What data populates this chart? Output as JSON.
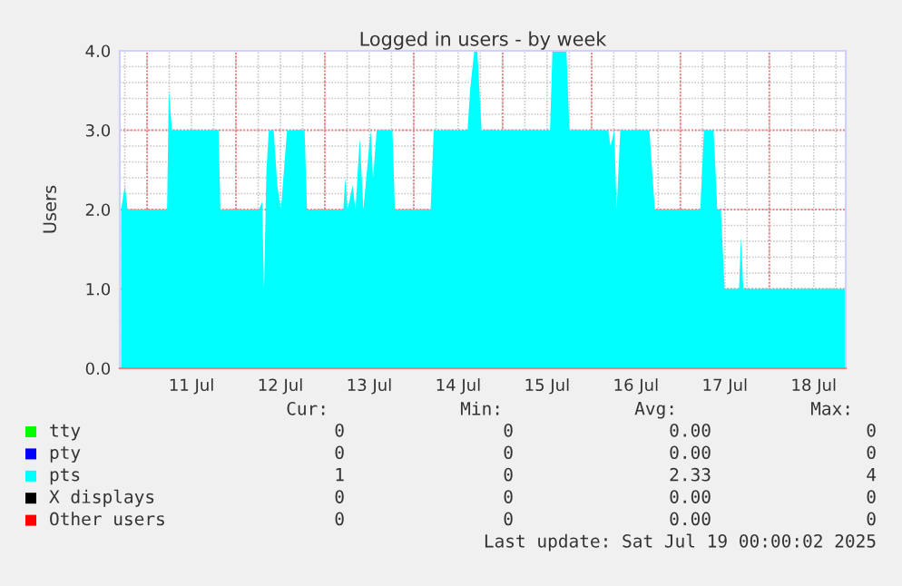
{
  "chart_data": {
    "type": "area",
    "title": "Logged in users - by week",
    "ylabel": "Users",
    "xlim": [
      "2025-07-10T16:38",
      "2025-07-18T20:38"
    ],
    "ylim": [
      0,
      4
    ],
    "yticks": [
      {
        "value": 0,
        "label": "0.0"
      },
      {
        "value": 1,
        "label": "1.0"
      },
      {
        "value": 2,
        "label": "2.0"
      },
      {
        "value": 3,
        "label": "3.0"
      },
      {
        "value": 4,
        "label": "4.0"
      }
    ],
    "xticks": [
      {
        "value": "2025-07-11T00:00",
        "label": null
      },
      {
        "value": "2025-07-11T12:00",
        "label": "11 Jul"
      },
      {
        "value": "2025-07-12T00:00",
        "label": null
      },
      {
        "value": "2025-07-12T12:00",
        "label": "12 Jul"
      },
      {
        "value": "2025-07-13T00:00",
        "label": null
      },
      {
        "value": "2025-07-13T12:00",
        "label": "13 Jul"
      },
      {
        "value": "2025-07-14T00:00",
        "label": null
      },
      {
        "value": "2025-07-14T12:00",
        "label": "14 Jul"
      },
      {
        "value": "2025-07-15T00:00",
        "label": null
      },
      {
        "value": "2025-07-15T12:00",
        "label": "15 Jul"
      },
      {
        "value": "2025-07-16T00:00",
        "label": null
      },
      {
        "value": "2025-07-16T12:00",
        "label": "16 Jul"
      },
      {
        "value": "2025-07-17T00:00",
        "label": null
      },
      {
        "value": "2025-07-17T12:00",
        "label": "17 Jul"
      },
      {
        "value": "2025-07-18T00:00",
        "label": null
      },
      {
        "value": "2025-07-18T12:00",
        "label": "18 Jul"
      }
    ],
    "grid": true,
    "legend": "bottom",
    "series": [
      {
        "name": "tty",
        "color": "#00ff00"
      },
      {
        "name": "pty",
        "color": "#0000ff"
      },
      {
        "name": "pts",
        "color": "#00ffff",
        "x": [
          "2025-07-10T17:00",
          "2025-07-10T18:00",
          "2025-07-10T18:45",
          "2025-07-11T05:24",
          "2025-07-11T05:53",
          "2025-07-11T06:43",
          "2025-07-11T19:18",
          "2025-07-11T19:48",
          "2025-07-12T06:16",
          "2025-07-12T07:05",
          "2025-07-12T07:34",
          "2025-07-12T08:14",
          "2025-07-12T08:53",
          "2025-07-12T10:11",
          "2025-07-12T11:10",
          "2025-07-12T12:09",
          "2025-07-12T13:47",
          "2025-07-12T18:32",
          "2025-07-12T19:11",
          "2025-07-13T05:00",
          "2025-07-13T05:30",
          "2025-07-13T06:09",
          "2025-07-13T07:28",
          "2025-07-13T08:17",
          "2025-07-13T09:25",
          "2025-07-13T10:24",
          "2025-07-13T12:22",
          "2025-07-13T13:01",
          "2025-07-13T14:00",
          "2025-07-13T18:15",
          "2025-07-13T18:55",
          "2025-07-14T04:34",
          "2025-07-14T05:23",
          "2025-07-14T14:32",
          "2025-07-14T15:12",
          "2025-07-14T16:21",
          "2025-07-14T17:10",
          "2025-07-14T18:18",
          "2025-07-15T12:48",
          "2025-07-15T13:27",
          "2025-07-15T17:13",
          "2025-07-15T18:02",
          "2025-07-16T04:30",
          "2025-07-16T05:09",
          "2025-07-16T06:08",
          "2025-07-16T06:47",
          "2025-07-16T07:46",
          "2025-07-16T15:37",
          "2025-07-16T17:06",
          "2025-07-17T05:22",
          "2025-07-17T06:21",
          "2025-07-17T08:58",
          "2025-07-17T09:57",
          "2025-07-17T10:56",
          "2025-07-17T11:55",
          "2025-07-17T15:50",
          "2025-07-17T16:20",
          "2025-07-17T16:59",
          "2025-07-18T20:38"
        ],
        "values": [
          2,
          2.3,
          2,
          2,
          3.5,
          3,
          3,
          2,
          2,
          2.1,
          1,
          2.5,
          3,
          3,
          2.3,
          2,
          3,
          3,
          2,
          2,
          2.4,
          2,
          2.3,
          2,
          2.9,
          2,
          3,
          2.4,
          3,
          3,
          2,
          2,
          3,
          3,
          3.5,
          4,
          4,
          3,
          3,
          4,
          4,
          3,
          3,
          2.8,
          3,
          2,
          3,
          3,
          2,
          2,
          3,
          3,
          2,
          2,
          1,
          1,
          1.65,
          1,
          1
        ]
      },
      {
        "name": "X displays",
        "color": "#000000"
      },
      {
        "name": "Other users",
        "color": "#ff0000"
      }
    ],
    "annotations": [
      "Cur:",
      "Min:",
      "Avg:",
      "Max:",
      "0",
      "0",
      "0.00",
      "0",
      "0",
      "0",
      "0.00",
      "0",
      "1",
      "0",
      "2.33",
      "4",
      "0",
      "0",
      "0.00",
      "0",
      "0",
      "0",
      "0.00",
      "0",
      "Last update: Sat Jul 19 00:00:02 2025"
    ]
  }
}
